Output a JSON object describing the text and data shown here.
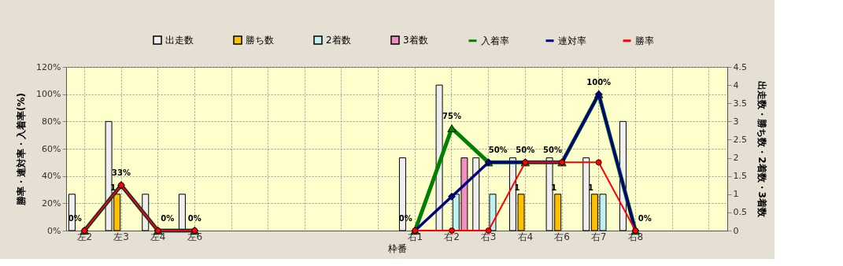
{
  "chart_data": {
    "type": "bar",
    "xlabel": "枠番",
    "ylabel": "勝率・連対率・入着率(%)",
    "y2label": "出走数・勝ち数・2着数・3着数",
    "categories": [
      "左2",
      "左3",
      "左4",
      "左6",
      null,
      null,
      null,
      null,
      null,
      "右1",
      "右2",
      "右3",
      "右4",
      "右6",
      "右7",
      "右8",
      null,
      null
    ],
    "ylim": [
      0,
      120
    ],
    "yticks": [
      {
        "value": 0,
        "label": "0%"
      },
      {
        "value": 20,
        "label": "20%"
      },
      {
        "value": 40,
        "label": "40%"
      },
      {
        "value": 60,
        "label": "60%"
      },
      {
        "value": 80,
        "label": "80%"
      },
      {
        "value": 100,
        "label": "100%"
      },
      {
        "value": 120,
        "label": "120%"
      }
    ],
    "y2lim": [
      0,
      4.5
    ],
    "y2ticks": [
      0,
      0.5,
      1,
      1.5,
      2,
      2.5,
      3,
      3.5,
      4,
      4.5
    ],
    "grid": true,
    "legend": "top",
    "line_style": "solid",
    "series": [
      {
        "name": "出走数",
        "color": "#eeeeee",
        "axis": "y2",
        "values": [
          1,
          3,
          1,
          1,
          null,
          null,
          null,
          null,
          null,
          2,
          4,
          2,
          2,
          2,
          2,
          3,
          null,
          null
        ]
      },
      {
        "name": "勝ち数",
        "color": "#ffc000",
        "axis": "y2",
        "values": [
          0,
          1,
          0,
          0,
          null,
          null,
          null,
          null,
          null,
          0,
          0,
          0,
          1,
          1,
          1,
          0,
          null,
          null
        ],
        "value_labels": [
          null,
          "1",
          null,
          null,
          null,
          null,
          null,
          null,
          null,
          null,
          null,
          null,
          "1",
          "1",
          "1",
          null,
          null,
          null
        ]
      },
      {
        "name": "2着数",
        "color": "#c0f0f0",
        "axis": "y2",
        "values": [
          0,
          0,
          0,
          0,
          null,
          null,
          null,
          null,
          null,
          0,
          1,
          1,
          0,
          0,
          1,
          0,
          null,
          null
        ]
      },
      {
        "name": "3着数",
        "color": "#f090c0",
        "axis": "y2",
        "values": [
          0,
          0,
          0,
          0,
          null,
          null,
          null,
          null,
          null,
          0,
          2,
          0,
          0,
          0,
          0,
          0,
          null,
          null
        ]
      },
      {
        "name": "入着率",
        "type": "line",
        "marker": "triangle",
        "color": "#008000",
        "axis": "y",
        "values": [
          0,
          33.3,
          0,
          0,
          null,
          null,
          null,
          null,
          null,
          0,
          75,
          50,
          50,
          50,
          100,
          0,
          null,
          null
        ],
        "value_labels": [
          "0%",
          "33%",
          "0%",
          "0%",
          null,
          null,
          null,
          null,
          null,
          "0%",
          "75%",
          "50%",
          "50%",
          "50%",
          "100%",
          "0%",
          null,
          null
        ]
      },
      {
        "name": "連対率",
        "type": "line",
        "marker": "diamond",
        "color": "#000080",
        "axis": "y",
        "values": [
          0,
          33.3,
          0,
          0,
          null,
          null,
          null,
          null,
          null,
          0,
          25,
          50,
          50,
          50,
          100,
          0,
          null,
          null
        ]
      },
      {
        "name": "勝率",
        "type": "line",
        "marker": "circle",
        "color": "#ff0000",
        "axis": "y",
        "values": [
          0,
          33.3,
          0,
          0,
          null,
          null,
          null,
          null,
          null,
          0,
          0,
          0,
          50,
          50,
          50,
          0,
          null,
          null
        ]
      }
    ]
  }
}
